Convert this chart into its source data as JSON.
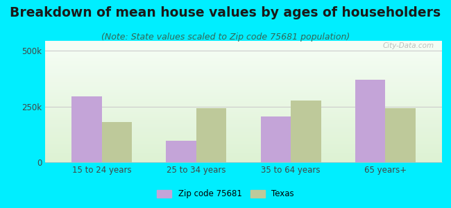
{
  "title": "Breakdown of mean house values by ages of householders",
  "subtitle": "(Note: State values scaled to Zip code 75681 population)",
  "categories": [
    "15 to 24 years",
    "25 to 34 years",
    "35 to 64 years",
    "65 years+"
  ],
  "zip_values": [
    295000,
    95000,
    205000,
    370000
  ],
  "texas_values": [
    180000,
    242000,
    278000,
    242000
  ],
  "zip_color": "#c4a4d8",
  "texas_color": "#bec99a",
  "zip_label": "Zip code 75681",
  "texas_label": "Texas",
  "background_outer": "#00eeff",
  "ylim": [
    0,
    550000
  ],
  "ytick_labels": [
    "0",
    "250k",
    "500k"
  ],
  "ytick_values": [
    0,
    250000,
    500000
  ],
  "bar_width": 0.32,
  "watermark": "City-Data.com",
  "title_fontsize": 13.5,
  "subtitle_fontsize": 9,
  "tick_fontsize": 8.5
}
